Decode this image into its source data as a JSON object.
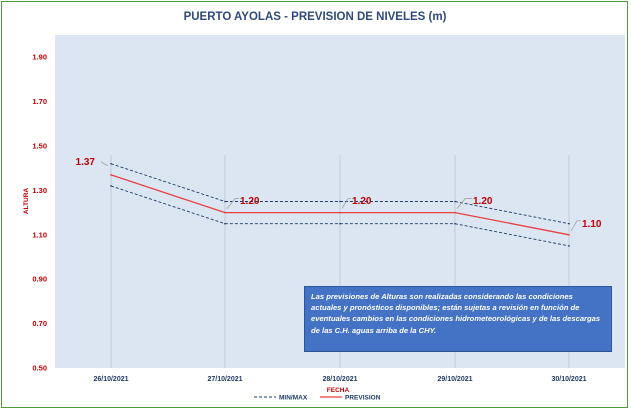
{
  "chart_data": {
    "type": "line",
    "title": "PUERTO AYOLAS - PREVISION DE NIVELES (m)",
    "ylabel": "ALTURA",
    "xlabel": "FECHA",
    "ylim": [
      0.5,
      2.0
    ],
    "yticks": [
      "0.50",
      "0.70",
      "0.90",
      "1.10",
      "1.30",
      "1.50",
      "1.70",
      "1.90"
    ],
    "categories": [
      "26/10/2021",
      "27/10/2021",
      "28/10/2021",
      "29/10/2021",
      "30/10/2021"
    ],
    "series": [
      {
        "name": "MIN/MAX",
        "role": "max",
        "values": [
          1.42,
          1.25,
          1.25,
          1.25,
          1.15
        ],
        "color": "#1f3b66",
        "dash": true
      },
      {
        "name": "MIN/MAX",
        "role": "min",
        "values": [
          1.32,
          1.15,
          1.15,
          1.15,
          1.05
        ],
        "color": "#1f3b66",
        "dash": true
      },
      {
        "name": "PREVISION",
        "role": "forecast",
        "values": [
          1.37,
          1.2,
          1.2,
          1.2,
          1.1
        ],
        "color": "#e84040",
        "dash": false
      }
    ],
    "data_labels": [
      "1.37",
      "1.20",
      "1.20",
      "1.20",
      "1.10"
    ],
    "legend": {
      "placement": "bottom",
      "entries": [
        "MIN/MAX",
        "PREVISION"
      ]
    },
    "grid": {
      "vertical": true,
      "horizontal": false
    },
    "plot_background": "#dce6f2",
    "annotation": "Las previsiones de Alturas son realizadas considerando las condiciones actuales y pronósticos disponibles; están sujetas a revisión en función de eventuales cambios en las condiciones hidrometeorológicas y de las descargas de las C.H. aguas arriba de la CHY."
  }
}
